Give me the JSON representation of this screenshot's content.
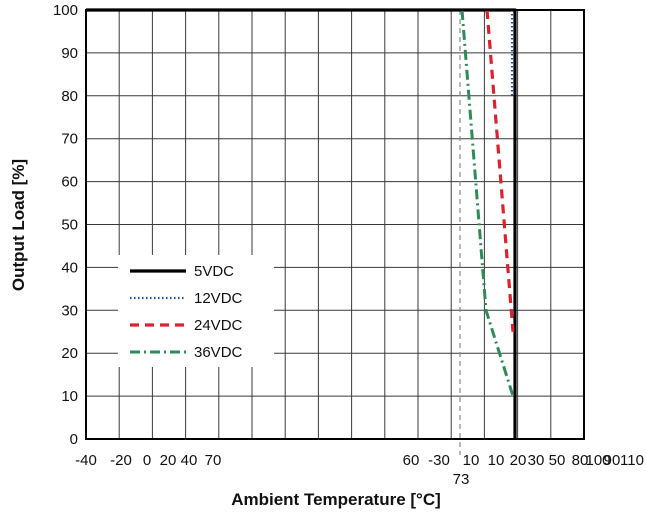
{
  "chart_data": {
    "type": "line",
    "xlabel": "Ambient Temperature [°C]",
    "ylabel": "Output Load [%]",
    "y_ticks": [
      "0",
      "10",
      "20",
      "30",
      "40",
      "50",
      "60",
      "70",
      "80",
      "90",
      "100"
    ],
    "x_tick_labels": [
      "-40",
      "-20",
      "0",
      "20",
      "40",
      "70",
      "60",
      "-30",
      "10",
      "10",
      "20",
      "30",
      "50",
      "80",
      "100",
      "90",
      "110"
    ],
    "extra_label": "73",
    "marker_line_x": 73,
    "grid": true,
    "legend_position": "center-left",
    "series": [
      {
        "name": "5VDC",
        "color": "#000000",
        "style": "solid",
        "points": [
          [
            -40,
            100
          ],
          [
            77,
            100
          ],
          [
            77,
            0
          ]
        ]
      },
      {
        "name": "12VDC",
        "color": "#1f4e9e",
        "style": "dotted",
        "points": [
          [
            76.5,
            100
          ],
          [
            76.5,
            80
          ]
        ]
      },
      {
        "name": "24VDC",
        "color": "#d9232e",
        "style": "dashed",
        "points": [
          [
            75,
            100
          ],
          [
            76.5,
            25
          ]
        ]
      },
      {
        "name": "36VDC",
        "color": "#2e8b57",
        "style": "dashdot",
        "points": [
          [
            73,
            100
          ],
          [
            74.5,
            30
          ],
          [
            76.5,
            10
          ]
        ]
      }
    ]
  }
}
